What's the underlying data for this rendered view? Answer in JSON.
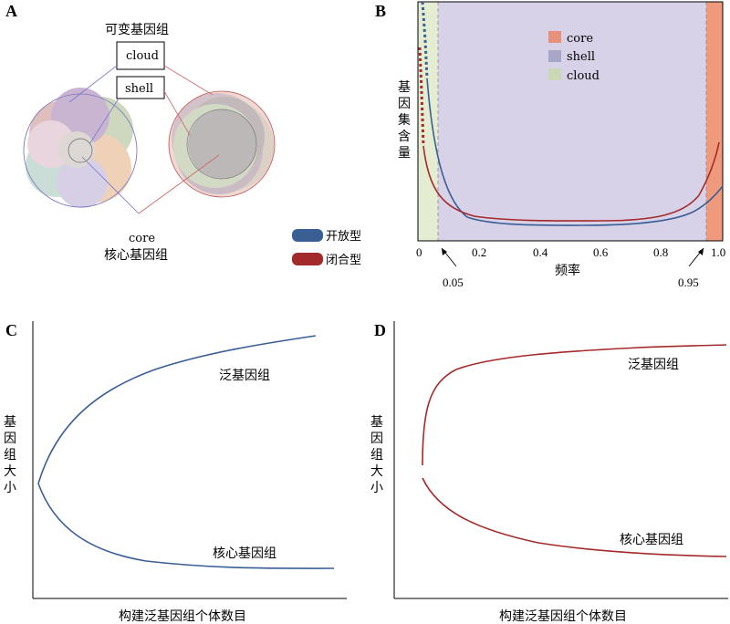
{
  "colors": {
    "open": "#3a5f95",
    "closed": "#a32a2a",
    "core_band": "#f09a7d",
    "shell_band": "#d8d2e8",
    "cloud_band": "#e4ecd2",
    "core_legend": "#e8917a",
    "shell_legend": "#a9a7c9",
    "cloud_legend": "#c9d9b6"
  },
  "panelA": {
    "letter": "A",
    "variable_label": "可变基因组",
    "cloud_label": "cloud",
    "shell_label": "shell",
    "core_label": "core",
    "core_cn_label": "核心基因组",
    "legend": [
      {
        "name": "开放型",
        "color": "#3a5f95"
      },
      {
        "name": "闭合型",
        "color": "#a32a2a"
      }
    ]
  },
  "panelB": {
    "letter": "B",
    "ylabel": "基因集含量",
    "xlabel": "频率",
    "xticks": [
      "0",
      "0.2",
      "0.4",
      "0.6",
      "0.8",
      "1.0"
    ],
    "annotations": [
      "0.05",
      "0.95"
    ],
    "legend": [
      {
        "name": "core",
        "color": "#e8917a"
      },
      {
        "name": "shell",
        "color": "#a9a7c9"
      },
      {
        "name": "cloud",
        "color": "#c9d9b6"
      }
    ]
  },
  "panelC": {
    "letter": "C",
    "ylabel": "基因组大小",
    "xlabel": "构建泛基因组个体数目",
    "upper_label": "泛基因组",
    "lower_label": "核心基因组"
  },
  "panelD": {
    "letter": "D",
    "ylabel": "基因组大小",
    "xlabel": "构建泛基因组个体数目",
    "upper_label": "泛基因组",
    "lower_label": "核心基因组"
  },
  "chart_data": [
    {
      "type": "line",
      "panel": "B",
      "xlim": [
        0,
        1
      ],
      "thresholds": [
        0.05,
        0.95
      ],
      "regions": [
        {
          "name": "cloud",
          "range": [
            0,
            0.05
          ]
        },
        {
          "name": "shell",
          "range": [
            0.05,
            0.95
          ]
        },
        {
          "name": "core",
          "range": [
            0.95,
            1.0
          ]
        }
      ],
      "series": [
        {
          "name": "开放型",
          "x": [
            0.01,
            0.03,
            0.05,
            0.08,
            0.1,
            0.15,
            0.2,
            0.3,
            0.4,
            0.5,
            0.6,
            0.7,
            0.8,
            0.9,
            0.95,
            1.0
          ],
          "y": [
            0.92,
            0.7,
            0.45,
            0.2,
            0.1,
            0.04,
            0.02,
            0.01,
            0.0,
            0.0,
            0.0,
            0.01,
            0.03,
            0.07,
            0.11,
            0.18
          ]
        },
        {
          "name": "闭合型",
          "x": [
            0.01,
            0.03,
            0.05,
            0.08,
            0.1,
            0.15,
            0.2,
            0.3,
            0.4,
            0.5,
            0.6,
            0.7,
            0.8,
            0.9,
            0.95,
            1.0
          ],
          "y": [
            0.62,
            0.45,
            0.3,
            0.14,
            0.08,
            0.05,
            0.04,
            0.03,
            0.02,
            0.02,
            0.02,
            0.03,
            0.05,
            0.1,
            0.22,
            0.38
          ]
        }
      ]
    },
    {
      "type": "line",
      "panel": "C",
      "series": [
        {
          "name": "泛基因组",
          "x": [
            0,
            1,
            2,
            3,
            4,
            5,
            6,
            7,
            8,
            9,
            10
          ],
          "y": [
            0.5,
            0.67,
            0.74,
            0.79,
            0.83,
            0.86,
            0.89,
            0.91,
            0.94,
            0.96,
            0.98
          ]
        },
        {
          "name": "核心基因组",
          "x": [
            0,
            1,
            2,
            3,
            4,
            5,
            6,
            7,
            8,
            9,
            10
          ],
          "y": [
            0.5,
            0.3,
            0.23,
            0.19,
            0.17,
            0.16,
            0.155,
            0.15,
            0.15,
            0.15,
            0.15
          ]
        }
      ]
    },
    {
      "type": "line",
      "panel": "D",
      "series": [
        {
          "name": "泛基因组",
          "x": [
            0,
            1,
            2,
            3,
            4,
            5,
            6,
            7,
            8,
            9,
            10
          ],
          "y": [
            0.5,
            0.82,
            0.87,
            0.89,
            0.9,
            0.91,
            0.915,
            0.92,
            0.925,
            0.93,
            0.935
          ]
        },
        {
          "name": "核心基因组",
          "x": [
            0,
            1,
            2,
            3,
            4,
            5,
            6,
            7,
            8,
            9,
            10
          ],
          "y": [
            0.42,
            0.26,
            0.21,
            0.19,
            0.18,
            0.17,
            0.165,
            0.16,
            0.16,
            0.155,
            0.155
          ]
        }
      ]
    }
  ]
}
